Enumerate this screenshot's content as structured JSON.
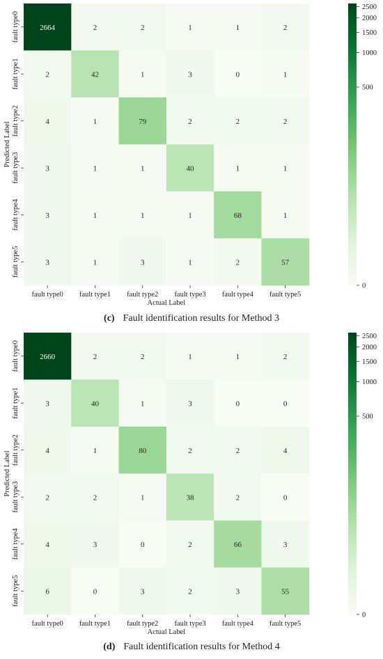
{
  "chart_data": [
    {
      "type": "heatmap",
      "caption_letter": "(c)",
      "caption_text": "Fault identification results for Method 3",
      "xlabel": "Actual Label",
      "ylabel": "Predicted Label",
      "x_categories": [
        "fault type0",
        "fault type1",
        "fault type2",
        "fault type3",
        "fault type4",
        "fault type5"
      ],
      "y_categories": [
        "fault type0",
        "fault type1",
        "fault type2",
        "fault type3",
        "fault type4",
        "fault type5"
      ],
      "values": [
        [
          2664,
          2,
          2,
          1,
          1,
          2
        ],
        [
          2,
          42,
          1,
          3,
          0,
          1
        ],
        [
          4,
          1,
          79,
          2,
          2,
          2
        ],
        [
          3,
          1,
          1,
          40,
          1,
          1
        ],
        [
          3,
          1,
          1,
          1,
          68,
          1
        ],
        [
          3,
          1,
          3,
          1,
          2,
          57
        ]
      ],
      "colorbar_ticks": [
        "2500",
        "2000",
        "1500",
        "1000",
        "500",
        "0"
      ],
      "colorbar_tick_values": [
        2500,
        2000,
        1500,
        1000,
        500,
        0
      ],
      "colorbar_range": [
        0,
        2664
      ],
      "colorbar_scale": "symlog",
      "colormap": "Greens",
      "colors": {
        "low": "#f7fcf5",
        "high": "#00441b"
      }
    },
    {
      "type": "heatmap",
      "caption_letter": "(d)",
      "caption_text": "Fault identification results for Method 4",
      "xlabel": "Actual Label",
      "ylabel": "Predicted Label",
      "x_categories": [
        "fault type0",
        "fault type1",
        "fault type2",
        "fault type3",
        "fault type4",
        "fault type5"
      ],
      "y_categories": [
        "fault type0",
        "fault type1",
        "fault type2",
        "fault type3",
        "fault type4",
        "fault type5"
      ],
      "values": [
        [
          2660,
          2,
          2,
          1,
          1,
          2
        ],
        [
          3,
          40,
          1,
          3,
          0,
          0
        ],
        [
          4,
          1,
          80,
          2,
          2,
          4
        ],
        [
          2,
          2,
          1,
          38,
          2,
          0
        ],
        [
          4,
          3,
          0,
          2,
          66,
          3
        ],
        [
          6,
          0,
          3,
          2,
          3,
          55
        ]
      ],
      "colorbar_ticks": [
        "2500",
        "2000",
        "1500",
        "1000",
        "500",
        "0"
      ],
      "colorbar_tick_values": [
        2500,
        2000,
        1500,
        1000,
        500,
        0
      ],
      "colorbar_range": [
        0,
        2660
      ],
      "colorbar_scale": "symlog",
      "colormap": "Greens",
      "colors": {
        "low": "#f7fcf5",
        "high": "#00441b"
      }
    }
  ]
}
